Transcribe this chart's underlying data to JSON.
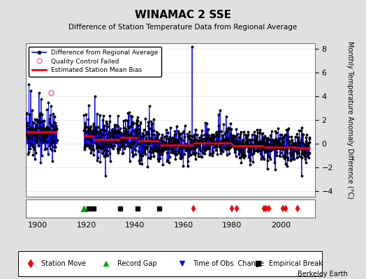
{
  "title": "WINAMAC 2 SSE",
  "subtitle": "Difference of Station Temperature Data from Regional Average",
  "ylabel": "Monthly Temperature Anomaly Difference (°C)",
  "ylim": [
    -4.5,
    8.5
  ],
  "yticks": [
    -4,
    -2,
    0,
    2,
    4,
    6,
    8
  ],
  "xlim": [
    1895,
    2014
  ],
  "xticks": [
    1900,
    1920,
    1940,
    1960,
    1980,
    2000
  ],
  "background_color": "#e0e0e0",
  "plot_bg_color": "#ffffff",
  "grid_color": "#b0b0b0",
  "line_color": "#0000ff",
  "bias_color": "#ff0000",
  "dot_color": "#000000",
  "qc_color": "#ff69b4",
  "bias_segments": [
    {
      "start": 1895,
      "end": 1908,
      "bias": 1.0
    },
    {
      "start": 1919,
      "end": 1923,
      "bias": 0.65
    },
    {
      "start": 1923,
      "end": 1934,
      "bias": 0.35
    },
    {
      "start": 1934,
      "end": 1941,
      "bias": 0.55
    },
    {
      "start": 1941,
      "end": 1950,
      "bias": 0.25
    },
    {
      "start": 1950,
      "end": 1964,
      "bias": -0.1
    },
    {
      "start": 1964,
      "end": 1980,
      "bias": 0.07
    },
    {
      "start": 1980,
      "end": 1982,
      "bias": -0.18
    },
    {
      "start": 1982,
      "end": 1993,
      "bias": -0.18
    },
    {
      "start": 1993,
      "end": 2001,
      "bias": -0.28
    },
    {
      "start": 2001,
      "end": 2007,
      "bias": -0.28
    },
    {
      "start": 2007,
      "end": 2012,
      "bias": -0.35
    }
  ],
  "station_moves": [
    1964,
    1980,
    1982,
    1993,
    1994,
    1995,
    2001,
    2002,
    2007
  ],
  "record_gaps": [
    1919
  ],
  "time_obs_changes": [],
  "empirical_breaks": [
    1921,
    1923,
    1934,
    1941,
    1950
  ],
  "gap_start": 1908,
  "gap_end": 1919,
  "qc_year": 1905.3,
  "qc_value": 4.3,
  "spike_year": 1963.5,
  "spike_value": 8.2,
  "berkeley_earth_text": "Berkeley Earth",
  "figsize": [
    5.24,
    4.0
  ],
  "dpi": 100
}
